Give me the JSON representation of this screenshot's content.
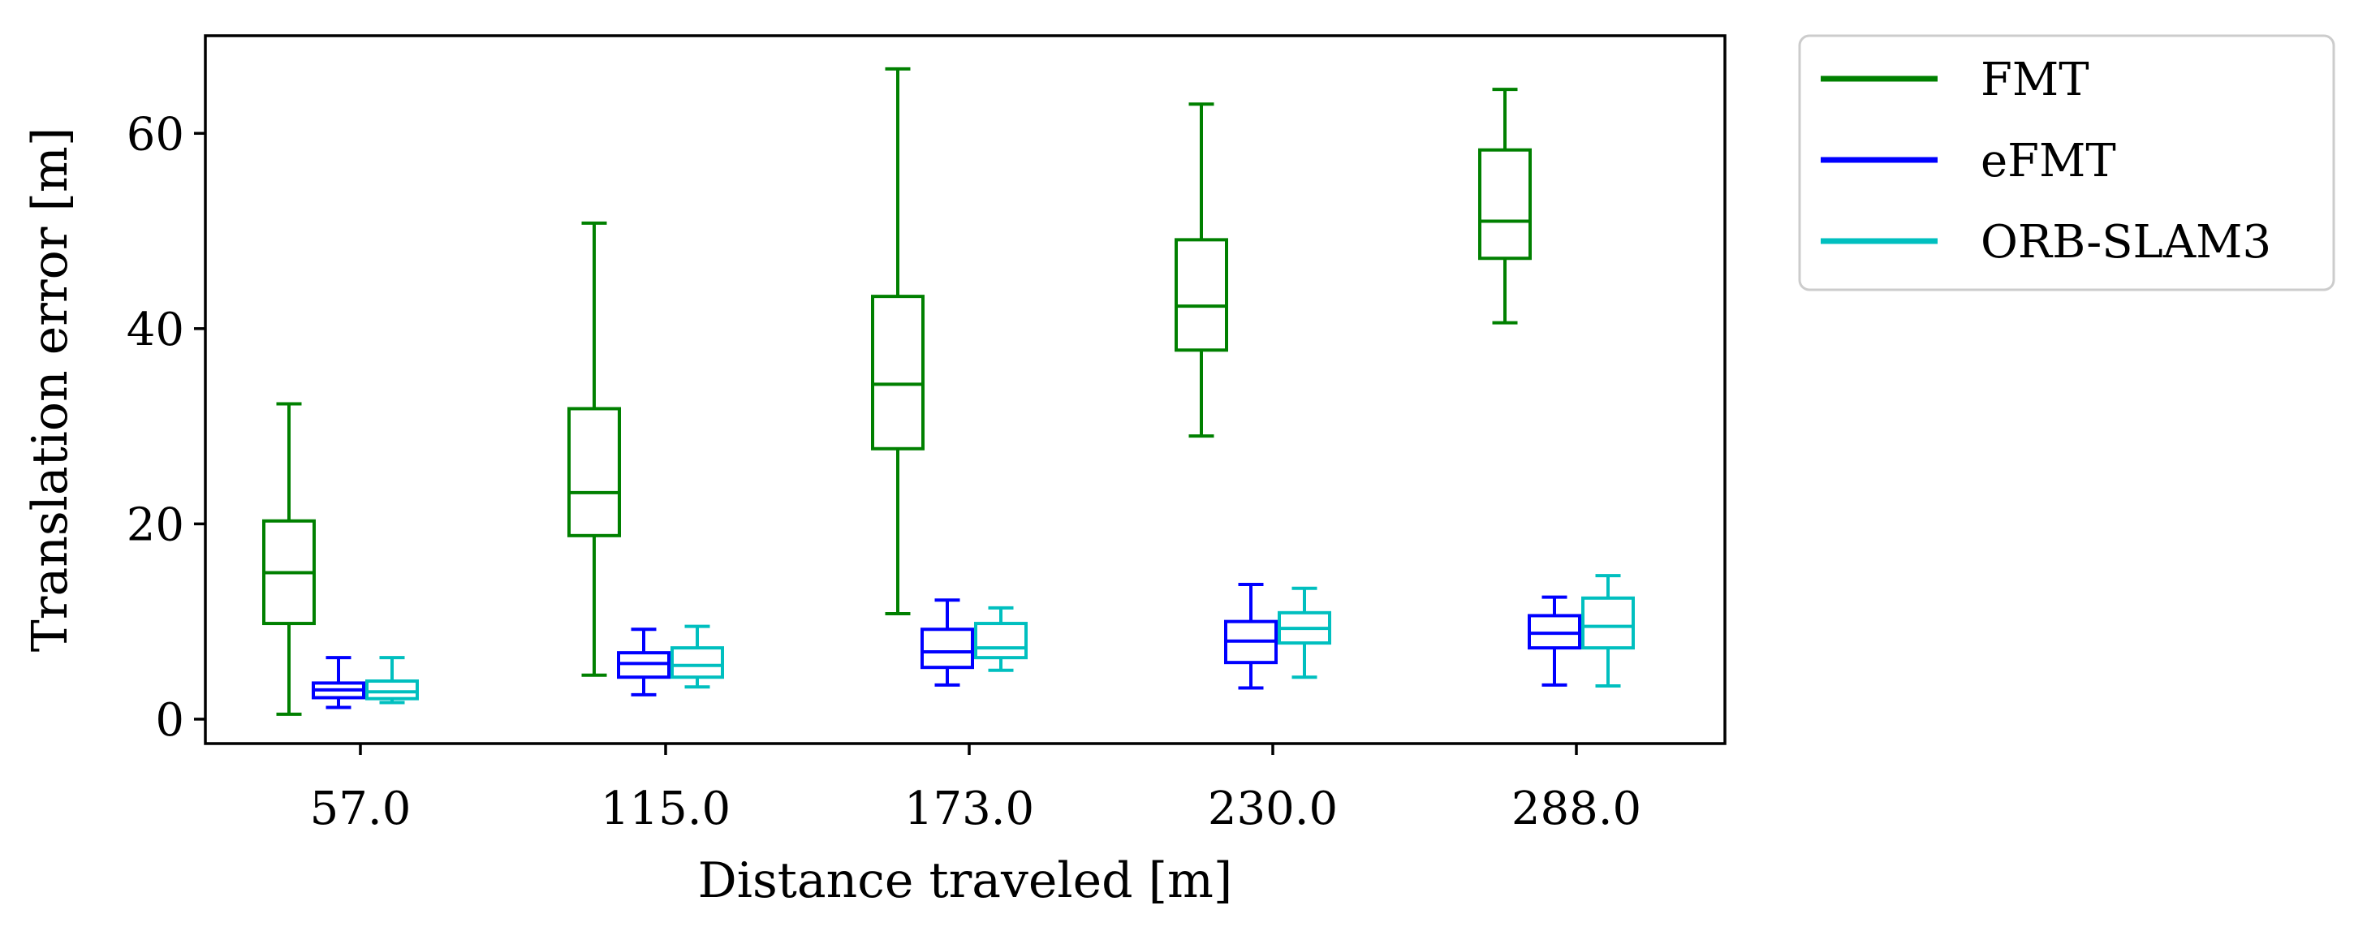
{
  "chart_data": {
    "type": "boxplot",
    "title": "",
    "xlabel": "Distance traveled [m]",
    "ylabel": "Translation error [m]",
    "ylim": [
      -2.5,
      70
    ],
    "yticks": [
      0,
      20,
      40,
      60
    ],
    "ytick_labels": [
      "0",
      "20",
      "40",
      "60"
    ],
    "categories": [
      "57.0",
      "115.0",
      "173.0",
      "230.0",
      "288.0"
    ],
    "series": [
      {
        "name": "FMT",
        "color": "#008000",
        "boxes": [
          {
            "whisker_low": 0.5,
            "q1": 9.8,
            "median": 15.0,
            "q3": 20.3,
            "whisker_high": 32.3
          },
          {
            "whisker_low": 4.5,
            "q1": 18.8,
            "median": 23.2,
            "q3": 31.8,
            "whisker_high": 50.8
          },
          {
            "whisker_low": 10.8,
            "q1": 27.7,
            "median": 34.3,
            "q3": 43.3,
            "whisker_high": 66.6
          },
          {
            "whisker_low": 29.0,
            "q1": 37.8,
            "median": 42.3,
            "q3": 49.1,
            "whisker_high": 63.0
          },
          {
            "whisker_low": 40.6,
            "q1": 47.2,
            "median": 51.0,
            "q3": 58.3,
            "whisker_high": 64.5
          }
        ]
      },
      {
        "name": "eFMT",
        "color": "#0000ff",
        "boxes": [
          {
            "whisker_low": 1.2,
            "q1": 2.2,
            "median": 3.0,
            "q3": 3.7,
            "whisker_high": 6.3
          },
          {
            "whisker_low": 2.5,
            "q1": 4.3,
            "median": 5.7,
            "q3": 6.8,
            "whisker_high": 9.2
          },
          {
            "whisker_low": 3.5,
            "q1": 5.3,
            "median": 6.9,
            "q3": 9.2,
            "whisker_high": 12.2
          },
          {
            "whisker_low": 3.2,
            "q1": 5.8,
            "median": 8.0,
            "q3": 10.0,
            "whisker_high": 13.8
          },
          {
            "whisker_low": 3.5,
            "q1": 7.3,
            "median": 8.8,
            "q3": 10.6,
            "whisker_high": 12.5
          }
        ]
      },
      {
        "name": "ORB-SLAM3",
        "color": "#00bfbf",
        "boxes": [
          {
            "whisker_low": 1.7,
            "q1": 2.1,
            "median": 2.8,
            "q3": 3.9,
            "whisker_high": 6.3
          },
          {
            "whisker_low": 3.3,
            "q1": 4.3,
            "median": 5.5,
            "q3": 7.3,
            "whisker_high": 9.5
          },
          {
            "whisker_low": 5.0,
            "q1": 6.3,
            "median": 7.3,
            "q3": 9.8,
            "whisker_high": 11.4
          },
          {
            "whisker_low": 4.3,
            "q1": 7.8,
            "median": 9.3,
            "q3": 10.9,
            "whisker_high": 13.4
          },
          {
            "whisker_low": 3.4,
            "q1": 7.3,
            "median": 9.5,
            "q3": 12.4,
            "whisker_high": 14.7
          }
        ]
      }
    ],
    "legend": {
      "position": "outside-right-top",
      "entries": [
        "FMT",
        "eFMT",
        "ORB-SLAM3"
      ]
    },
    "grid": false
  }
}
